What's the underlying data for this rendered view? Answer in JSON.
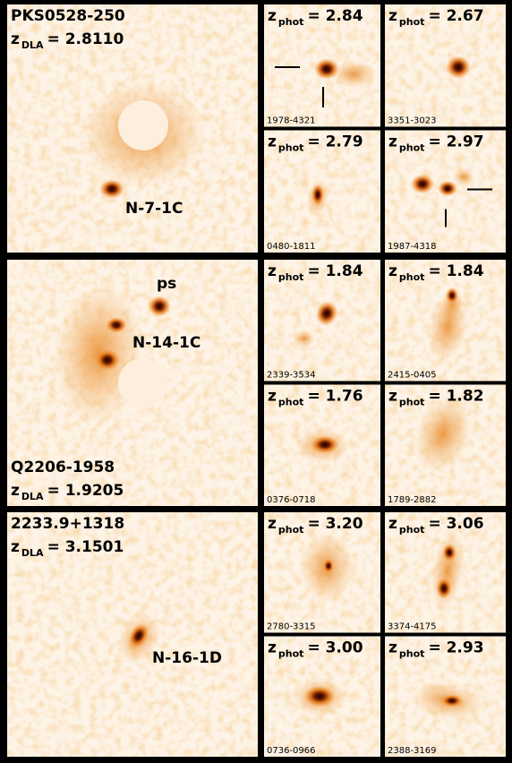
{
  "panels": [
    {
      "field": "PKS0528-250",
      "dla": {
        "symbol": "z",
        "subscript": "DLA",
        "value": "= 2.8110"
      },
      "labels": [
        "N-7-1C"
      ],
      "thumbnails": [
        {
          "symbol": "z",
          "subscript": "phot",
          "value": "= 2.84",
          "id": "1978-4321"
        },
        {
          "symbol": "z",
          "subscript": "phot",
          "value": "= 2.67",
          "id": "3351-3023"
        },
        {
          "symbol": "z",
          "subscript": "phot",
          "value": "= 2.79",
          "id": "0480-1811"
        },
        {
          "symbol": "z",
          "subscript": "phot",
          "value": "= 2.97",
          "id": "1987-4318"
        }
      ]
    },
    {
      "field": "Q2206-1958",
      "dla": {
        "symbol": "z",
        "subscript": "DLA",
        "value": "= 1.9205"
      },
      "labels": [
        "ps",
        "N-14-1C"
      ],
      "thumbnails": [
        {
          "symbol": "z",
          "subscript": "phot",
          "value": "= 1.84",
          "id": "2339-3534"
        },
        {
          "symbol": "z",
          "subscript": "phot",
          "value": "= 1.84",
          "id": "2415-0405"
        },
        {
          "symbol": "z",
          "subscript": "phot",
          "value": "= 1.76",
          "id": "0376-0718"
        },
        {
          "symbol": "z",
          "subscript": "phot",
          "value": "= 1.82",
          "id": "1789-2882"
        }
      ]
    },
    {
      "field": "2233.9+1318",
      "dla": {
        "symbol": "z",
        "subscript": "DLA",
        "value": "= 3.1501"
      },
      "labels": [
        "N-16-1D"
      ],
      "thumbnails": [
        {
          "symbol": "z",
          "subscript": "phot",
          "value": "= 3.20",
          "id": "2780-3315"
        },
        {
          "symbol": "z",
          "subscript": "phot",
          "value": "= 3.06",
          "id": "3374-4175"
        },
        {
          "symbol": "z",
          "subscript": "phot",
          "value": "= 3.00",
          "id": "0736-0966"
        },
        {
          "symbol": "z",
          "subscript": "phot",
          "value": "= 2.93",
          "id": "2388-3169"
        }
      ]
    }
  ]
}
